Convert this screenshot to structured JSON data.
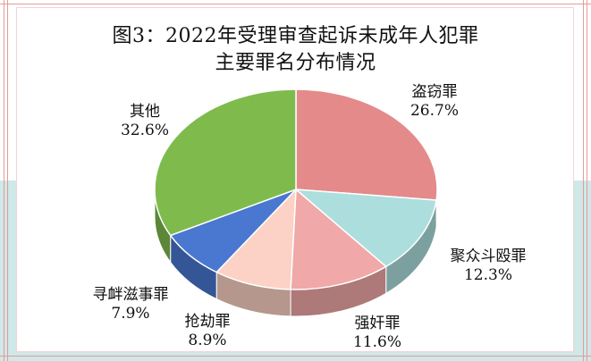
{
  "chart_data": {
    "type": "pie",
    "title_line1": "图3：2022年受理审查起诉未成年人犯罪",
    "title_line2": "主要罪名分布情况",
    "slices": [
      {
        "label": "盗窃罪",
        "value": 26.7,
        "value_text": "26.7%",
        "color": "#e48a8a"
      },
      {
        "label": "聚众斗殴罪",
        "value": 12.3,
        "value_text": "12.3%",
        "color": "#acdedd"
      },
      {
        "label": "强奸罪",
        "value": 11.6,
        "value_text": "11.6%",
        "color": "#f0a8a8"
      },
      {
        "label": "抢劫罪",
        "value": 8.9,
        "value_text": "8.9%",
        "color": "#fbd2c5"
      },
      {
        "label": "寻衅滋事罪",
        "value": 7.9,
        "value_text": "7.9%",
        "color": "#4a78d0"
      },
      {
        "label": "其他",
        "value": 32.6,
        "value_text": "32.6%",
        "color": "#7fbb4c"
      }
    ],
    "legend": "none",
    "grid": false
  }
}
